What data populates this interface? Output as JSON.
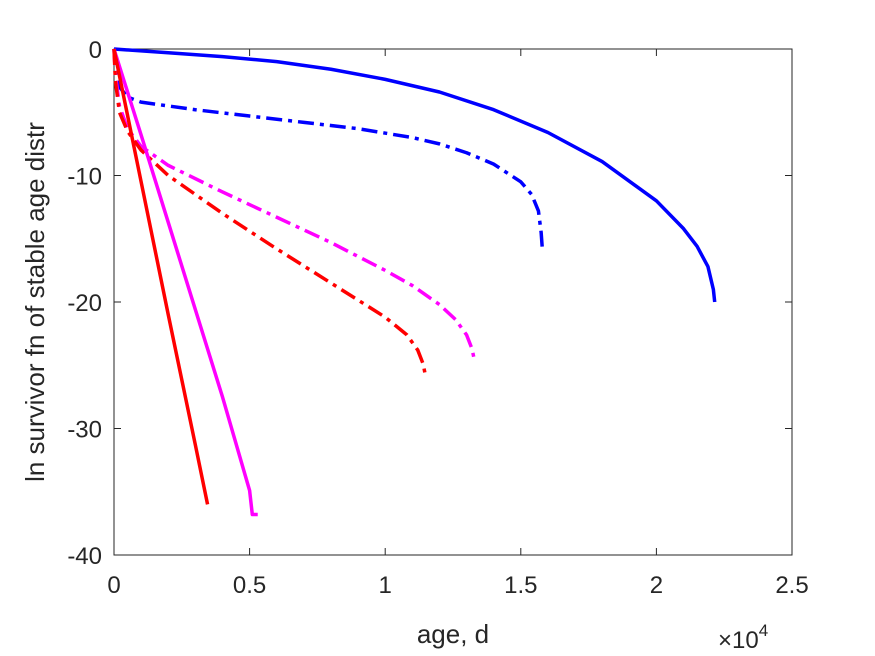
{
  "chart_data": {
    "type": "line",
    "title": "",
    "xlabel": "age, d",
    "ylabel": "ln survivor fn of stable age distr",
    "x_multiplier_label": "×10",
    "x_multiplier_exponent": "4",
    "xlim": [
      0,
      2.5
    ],
    "ylim": [
      -40,
      0
    ],
    "xticks": [
      0,
      0.5,
      1,
      1.5,
      2,
      2.5
    ],
    "xtick_labels": [
      "0",
      "0.5",
      "1",
      "1.5",
      "2",
      "2.5"
    ],
    "yticks": [
      0,
      -10,
      -20,
      -30,
      -40
    ],
    "ytick_labels": [
      "0",
      "-10",
      "-20",
      "-30",
      "-40"
    ],
    "grid": false,
    "legend": "none",
    "x_units_note": "x values in units of 10^4 days",
    "series": [
      {
        "color": "#0000ff",
        "dash": "solid",
        "x": [
          0,
          0.2,
          0.4,
          0.6,
          0.8,
          1.0,
          1.2,
          1.4,
          1.6,
          1.8,
          2.0,
          2.1,
          2.15,
          2.19,
          2.21,
          2.215
        ],
        "y": [
          0,
          -0.3,
          -0.6,
          -1.0,
          -1.6,
          -2.4,
          -3.4,
          -4.8,
          -6.6,
          -8.9,
          -12.0,
          -14.2,
          -15.6,
          -17.2,
          -19.0,
          -20.0
        ]
      },
      {
        "color": "#0000ff",
        "dash": "dashdot",
        "x": [
          0,
          0.005,
          0.02,
          0.05,
          0.1,
          0.2,
          0.3,
          0.5,
          0.7,
          0.9,
          1.1,
          1.2,
          1.3,
          1.4,
          1.5,
          1.54,
          1.565,
          1.575,
          1.58
        ],
        "y": [
          0,
          -1.5,
          -3.0,
          -3.8,
          -4.2,
          -4.5,
          -4.8,
          -5.3,
          -5.8,
          -6.3,
          -7.0,
          -7.5,
          -8.2,
          -9.1,
          -10.5,
          -11.5,
          -12.8,
          -14.5,
          -16.0
        ]
      },
      {
        "color": "#ff00ff",
        "dash": "dashdot",
        "x": [
          0,
          0.005,
          0.02,
          0.05,
          0.1,
          0.2,
          0.4,
          0.6,
          0.8,
          1.0,
          1.1,
          1.2,
          1.26,
          1.3,
          1.32,
          1.33
        ],
        "y": [
          0,
          -2.0,
          -4.5,
          -6.3,
          -7.7,
          -9.2,
          -11.3,
          -13.3,
          -15.3,
          -17.5,
          -18.7,
          -20.2,
          -21.4,
          -22.6,
          -23.7,
          -24.7
        ]
      },
      {
        "color": "#ff0000",
        "dash": "dashdot",
        "x": [
          0,
          0.005,
          0.02,
          0.05,
          0.1,
          0.2,
          0.4,
          0.6,
          0.8,
          1.0,
          1.08,
          1.12,
          1.14,
          1.15
        ],
        "y": [
          0,
          -2.5,
          -5.0,
          -6.5,
          -8.0,
          -10.0,
          -13.0,
          -15.8,
          -18.5,
          -21.2,
          -22.6,
          -23.8,
          -24.9,
          -26.0
        ]
      },
      {
        "color": "#ff00ff",
        "dash": "solid",
        "x": [
          0,
          0.1,
          0.2,
          0.3,
          0.4,
          0.5,
          0.51,
          0.53
        ],
        "y": [
          0,
          -6.8,
          -13.7,
          -20.6,
          -27.5,
          -34.9,
          -36.8,
          -36.8
        ]
      },
      {
        "color": "#ff0000",
        "dash": "solid",
        "x": [
          0,
          0.1,
          0.2,
          0.3,
          0.345
        ],
        "y": [
          0,
          -10.5,
          -21.0,
          -31.3,
          -36.0
        ]
      }
    ]
  }
}
